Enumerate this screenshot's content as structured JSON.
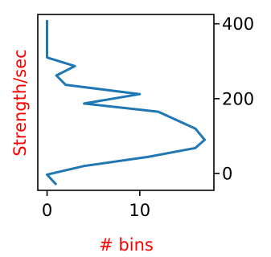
{
  "chart_data": {
    "type": "line",
    "orientation": "horizontal-histogram",
    "xlabel": "# bins",
    "ylabel": "Strength/sec",
    "label_color": "#ff0000",
    "line_color": "#1f77b4",
    "xlim": [
      -1,
      18
    ],
    "ylim": [
      -45,
      425
    ],
    "xticks": [
      0,
      10
    ],
    "yticks": [
      0,
      200,
      400
    ],
    "yaxis_side": "right",
    "grid": false,
    "series": [
      {
        "points": [
          {
            "x": 1,
            "y": -30
          },
          {
            "x": 0,
            "y": -3
          },
          {
            "x": 4,
            "y": 20
          },
          {
            "x": 11,
            "y": 45
          },
          {
            "x": 16,
            "y": 68
          },
          {
            "x": 17,
            "y": 90
          },
          {
            "x": 16,
            "y": 120
          },
          {
            "x": 12,
            "y": 165
          },
          {
            "x": 4,
            "y": 187
          },
          {
            "x": 10,
            "y": 212
          },
          {
            "x": 2,
            "y": 237
          },
          {
            "x": 1,
            "y": 262
          },
          {
            "x": 3,
            "y": 287
          },
          {
            "x": 0,
            "y": 310
          },
          {
            "x": 0,
            "y": 410
          }
        ]
      }
    ]
  }
}
